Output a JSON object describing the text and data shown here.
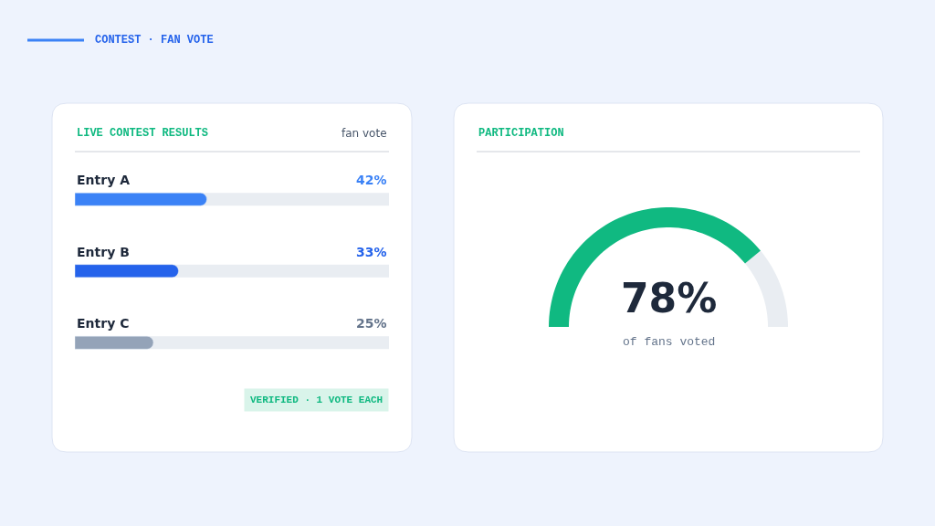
{
  "chart_data": [
    {
      "type": "bar",
      "orientation": "horizontal",
      "title": "LIVE CONTEST RESULTS",
      "subtitle": "fan vote",
      "categories": [
        "Entry A",
        "Entry B",
        "Entry C"
      ],
      "values": [
        42,
        33,
        25
      ],
      "colors": [
        "#3b82f6",
        "#2563eb",
        "#94a3b8"
      ],
      "value_labels": [
        "42%",
        "33%",
        "25%"
      ],
      "xlim": [
        0,
        100
      ],
      "annotations": [
        "CONTEST · FAN VOTE",
        "VERIFIED · 1 VOTE EACH"
      ]
    },
    {
      "type": "donut",
      "title": "PARTICIPATION",
      "categories": [
        null,
        null
      ],
      "values": [
        78,
        22
      ],
      "colors": [
        "#10b981",
        "#e9edf2"
      ],
      "value_labels": [
        "78%",
        null
      ],
      "annotations": [
        "of fans voted"
      ]
    }
  ]
}
